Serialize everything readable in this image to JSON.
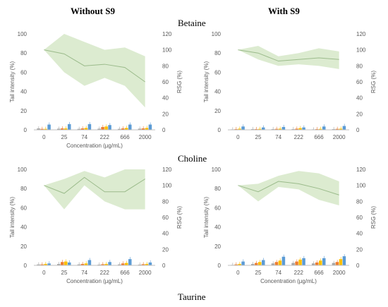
{
  "column_headers": [
    "Without S9",
    "With S9"
  ],
  "row_headers": [
    "Betaine",
    "Choline",
    "Taurine"
  ],
  "colors": {
    "line": "#9bbb8b",
    "band": "#d6e8c8",
    "bar_gray": "#a6a6a6",
    "bar_orange": "#ed7d31",
    "bar_yellow": "#ffc000",
    "bar_blue": "#5b9bd5",
    "axis": "#bfbfbf"
  },
  "chart_data": [
    {
      "type": "line+bar",
      "title": "Without S9 — Betaine",
      "categories": [
        "0",
        "25",
        "74",
        "222",
        "666",
        "2000"
      ],
      "xlabel": "Concentration (µg/mL)",
      "ylabel": "Tail intensity (%)",
      "y2label": "RSG (%)",
      "ylim": [
        0,
        100
      ],
      "y2lim": [
        0,
        120
      ],
      "yticks": [
        "0",
        "20",
        "40",
        "60",
        "80",
        "100"
      ],
      "y2ticks": [
        "0",
        "20",
        "40",
        "60",
        "80",
        "100",
        "120"
      ],
      "rsg": {
        "mean": [
          100,
          95,
          80,
          82,
          78,
          60
        ],
        "upper": [
          100,
          120,
          110,
          100,
          103,
          92
        ],
        "lower": [
          100,
          72,
          55,
          65,
          55,
          28
        ]
      },
      "bars": {
        "gray": [
          1.5,
          1.2,
          1.0,
          1.2,
          1.0,
          1.2
        ],
        "orange": [
          1.0,
          1.5,
          1.5,
          3.0,
          1.5,
          1.5
        ],
        "yellow": [
          1.0,
          1.5,
          2.0,
          3.5,
          2.0,
          2.0
        ],
        "blue": [
          5.5,
          6.0,
          6.0,
          5.0,
          5.5,
          5.5
        ]
      }
    },
    {
      "type": "line+bar",
      "title": "With S9 — Betaine",
      "categories": [
        "0",
        "25",
        "74",
        "222",
        "666",
        "2000"
      ],
      "xlabel": "",
      "ylabel": "Tail intensity (%)",
      "y2label": "RSG (%)",
      "ylim": [
        0,
        100
      ],
      "y2lim": [
        0,
        120
      ],
      "yticks": [
        "0",
        "20",
        "40",
        "60",
        "80",
        "100"
      ],
      "y2ticks": [
        "0",
        "20",
        "40",
        "60",
        "80",
        "100",
        "120"
      ],
      "rsg": {
        "mean": [
          100,
          96,
          86,
          88,
          90,
          88
        ],
        "upper": [
          100,
          105,
          92,
          96,
          102,
          98
        ],
        "lower": [
          100,
          88,
          80,
          82,
          80,
          76
        ]
      },
      "bars": {
        "gray": [
          0.5,
          0.8,
          0.8,
          0.8,
          0.5,
          0.8
        ],
        "orange": [
          0.8,
          0.8,
          1.0,
          1.2,
          0.8,
          1.0
        ],
        "yellow": [
          1.2,
          1.0,
          1.2,
          1.8,
          1.0,
          1.2
        ],
        "blue": [
          3.5,
          2.5,
          3.0,
          2.5,
          3.5,
          4.0
        ]
      }
    },
    {
      "type": "line+bar",
      "title": "Without S9 — Choline",
      "categories": [
        "0",
        "25",
        "74",
        "222",
        "666",
        "2000"
      ],
      "xlabel": "",
      "ylabel": "Tail intensity (%)",
      "y2label": "RSG (%)",
      "ylim": [
        0,
        100
      ],
      "y2lim": [
        0,
        120
      ],
      "yticks": [
        "0",
        "20",
        "40",
        "60",
        "80",
        "100"
      ],
      "y2ticks": [
        "0",
        "20",
        "40",
        "60",
        "80",
        "100",
        "120"
      ],
      "rsg": {
        "mean": [
          100,
          90,
          110,
          92,
          92,
          108
        ],
        "upper": [
          100,
          108,
          118,
          110,
          120,
          120
        ],
        "lower": [
          100,
          70,
          100,
          80,
          70,
          70
        ]
      },
      "bars": {
        "gray": [
          1.0,
          1.5,
          1.0,
          0.8,
          1.0,
          0.8
        ],
        "orange": [
          1.0,
          3.5,
          1.5,
          1.2,
          2.0,
          1.2
        ],
        "yellow": [
          1.5,
          4.0,
          2.0,
          1.5,
          2.5,
          1.5
        ],
        "blue": [
          2.0,
          3.0,
          5.5,
          3.5,
          6.5,
          3.0
        ]
      }
    },
    {
      "type": "line+bar",
      "title": "With S9 — Choline",
      "categories": [
        "0",
        "25",
        "74",
        "222",
        "666",
        "2000"
      ],
      "xlabel": "Concentration (µg/mL)",
      "ylabel": "Tail intensity (%)",
      "y2label": "RSG (%)",
      "ylim": [
        0,
        100
      ],
      "y2lim": [
        0,
        120
      ],
      "yticks": [
        "0",
        "20",
        "40",
        "60",
        "80",
        "100"
      ],
      "y2ticks": [
        "0",
        "20",
        "40",
        "60",
        "80",
        "100",
        "120"
      ],
      "rsg": {
        "mean": [
          100,
          92,
          105,
          102,
          96,
          88
        ],
        "upper": [
          100,
          102,
          112,
          118,
          115,
          105
        ],
        "lower": [
          100,
          80,
          98,
          95,
          82,
          75
        ]
      },
      "bars": {
        "gray": [
          0.5,
          1.5,
          2.0,
          2.5,
          2.0,
          2.5
        ],
        "orange": [
          1.0,
          2.5,
          3.5,
          4.0,
          3.0,
          3.5
        ],
        "yellow": [
          1.5,
          3.5,
          5.0,
          6.0,
          5.0,
          6.5
        ],
        "blue": [
          4.0,
          5.5,
          9.0,
          7.5,
          7.5,
          9.5
        ]
      }
    }
  ],
  "bottom_xlabel": "Concentration (µg/mL)"
}
